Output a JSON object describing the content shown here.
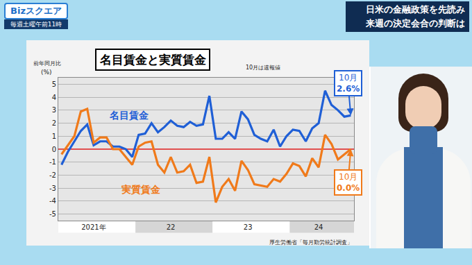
{
  "header": {
    "logo": "Bizスクエア",
    "schedule": "毎週土曜午前11時",
    "headline": [
      "日米の金融政策を先読み",
      "来週の決定会合の判断は"
    ]
  },
  "chart_data": {
    "type": "line",
    "title": "名目賃金と実質賃金",
    "note": "10月は速報値",
    "subtitle": "前年同月比",
    "ylabel": "(%)",
    "source": "厚生労働省「毎月勤労統計調査」",
    "categories": [
      null,
      null,
      null,
      null,
      null,
      "2021年",
      null,
      null,
      null,
      null,
      null,
      null,
      null,
      null,
      null,
      null,
      null,
      "22",
      null,
      null,
      null,
      null,
      null,
      null,
      null,
      null,
      null,
      null,
      null,
      "23",
      null,
      null,
      null,
      null,
      null,
      null,
      null,
      null,
      null,
      null,
      "24",
      null,
      null,
      null,
      null,
      null
    ],
    "series": [
      {
        "name": "名目賃金",
        "color": "#1f5fd6",
        "callout": {
          "label": "10月",
          "value_label": "2.6%"
        },
        "values": [
          -1.2,
          -0.2,
          0.6,
          1.4,
          1.9,
          0.3,
          0.6,
          0.6,
          0.2,
          0.2,
          0.0,
          -0.6,
          1.1,
          1.2,
          2.0,
          1.3,
          1.7,
          2.2,
          1.8,
          1.7,
          2.1,
          1.8,
          1.9,
          4.1,
          0.8,
          0.8,
          1.3,
          0.8,
          2.9,
          2.3,
          1.1,
          0.8,
          0.6,
          1.5,
          0.2,
          1.0,
          1.5,
          1.4,
          0.6,
          1.6,
          2.0,
          4.5,
          3.4,
          3.0,
          2.5,
          2.6
        ]
      },
      {
        "name": "実質賃金",
        "color": "#f07a1a",
        "callout": {
          "label": "10月",
          "value_label": "0.0%"
        },
        "values": [
          -0.4,
          0.3,
          1.0,
          2.9,
          3.1,
          0.5,
          0.9,
          0.9,
          0.0,
          0.0,
          -0.6,
          -1.2,
          0.2,
          0.5,
          0.6,
          -1.2,
          -1.8,
          -0.6,
          -1.8,
          -1.7,
          -1.2,
          -2.6,
          -2.5,
          -0.6,
          -4.1,
          -2.9,
          -2.3,
          -3.2,
          -0.9,
          -1.6,
          -2.7,
          -2.8,
          -2.9,
          -2.3,
          -2.5,
          -1.9,
          -1.1,
          -1.3,
          -2.1,
          -0.7,
          -1.4,
          1.1,
          0.4,
          -0.8,
          -0.4,
          0.0
        ]
      }
    ],
    "ylim": [
      -5.5,
      5.5
    ],
    "yticks": [
      5,
      4,
      3,
      2,
      1,
      0,
      -1,
      -2,
      -3,
      -4,
      -5
    ],
    "grid": true
  }
}
